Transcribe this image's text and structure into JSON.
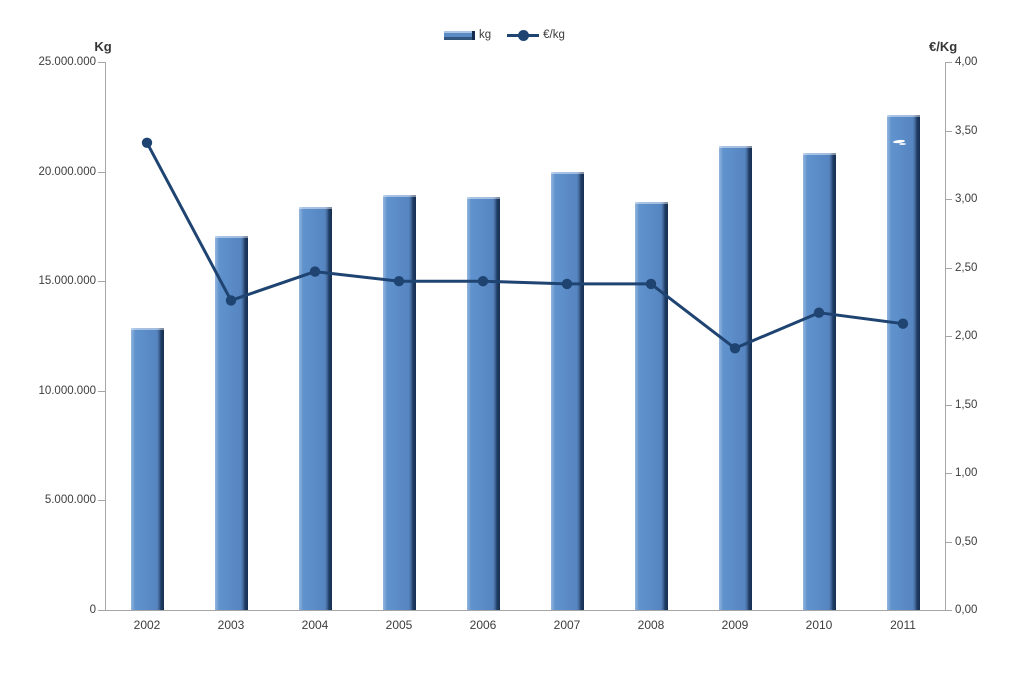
{
  "legend": {
    "items": [
      {
        "label": "kg",
        "swatch": "bar-swatch-icon"
      },
      {
        "label": "€/kg",
        "swatch": "line-marker-swatch-icon"
      }
    ]
  },
  "axes": {
    "left": {
      "title": "Kg",
      "tick_labels": [
        "25.000.000",
        "20.000.000",
        "15.000.000",
        "10.000.000",
        "5.000.000",
        "0"
      ]
    },
    "right": {
      "title": "€/Kg",
      "tick_labels": [
        "4,00",
        "3,50",
        "3,00",
        "2,50",
        "2,00",
        "1,50",
        "1,00",
        "0,50",
        "0,00"
      ]
    }
  },
  "chart_data": {
    "type": "bar",
    "subtype": "bar+line-combo",
    "title": "",
    "categories": [
      "2002",
      "2003",
      "2004",
      "2005",
      "2006",
      "2007",
      "2008",
      "2009",
      "2010",
      "2011"
    ],
    "series": [
      {
        "name": "kg",
        "type": "bar",
        "axis": "left",
        "values": [
          12850000,
          17050000,
          18400000,
          18950000,
          18850000,
          20000000,
          18600000,
          21150000,
          20850000,
          22600000
        ]
      },
      {
        "name": "€/kg",
        "type": "line",
        "axis": "right",
        "values": [
          3.41,
          2.26,
          2.47,
          2.4,
          2.4,
          2.38,
          2.38,
          1.91,
          2.17,
          2.09
        ]
      }
    ],
    "left_axis": {
      "label": "Kg",
      "range": [
        0,
        25000000
      ],
      "tick_step": 5000000
    },
    "right_axis": {
      "label": "€/Kg",
      "range": [
        0,
        4
      ],
      "tick_step": 0.5
    },
    "grid": false,
    "legend_position": "top-center"
  },
  "colors": {
    "bar_fill": "#5685c1",
    "bar_edge_light": "#aac5e5",
    "bar_edge_dark": "#152e4f",
    "line": "#1f4472",
    "axis": "#a6a6a6",
    "text": "#3d3d3d",
    "background": "#ffffff"
  }
}
